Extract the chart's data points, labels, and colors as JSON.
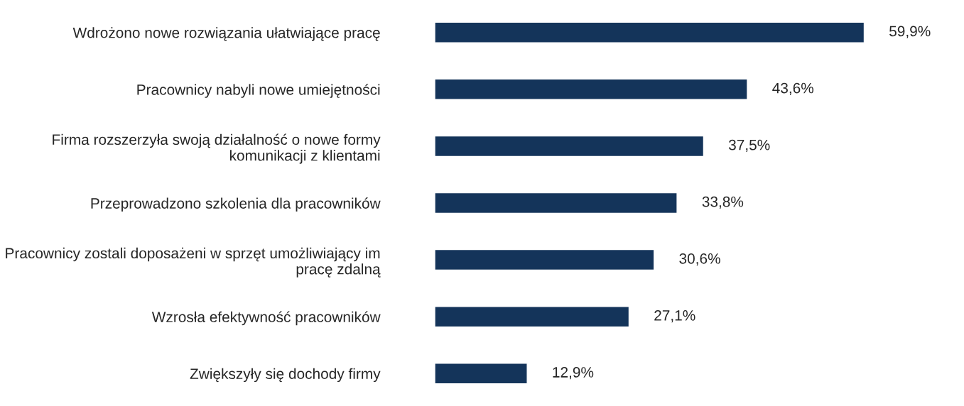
{
  "chart_data": {
    "type": "bar",
    "orientation": "horizontal",
    "categories": [
      "Wdrożono nowe rozwiązania ułatwiające pracę",
      "Pracownicy nabyli nowe umiejętności",
      "Firma rozszerzyła swoją działalność o nowe formy\nkomunikacji z klientami",
      "Przeprowadzono szkolenia dla pracowników",
      "Pracownicy zostali doposażeni w sprzęt umożliwiający im\npracę zdalną",
      "Wzrosła efektywność pracowników",
      "Zwiększyły się dochody firmy"
    ],
    "values": [
      59.9,
      43.6,
      37.5,
      33.8,
      30.6,
      27.1,
      12.9
    ],
    "value_labels": [
      "59,9%",
      "43,6%",
      "37,5%",
      "33,8%",
      "30,6%",
      "27,1%",
      "12,9%"
    ],
    "color": "#14345a",
    "grid": false,
    "legend": false
  }
}
